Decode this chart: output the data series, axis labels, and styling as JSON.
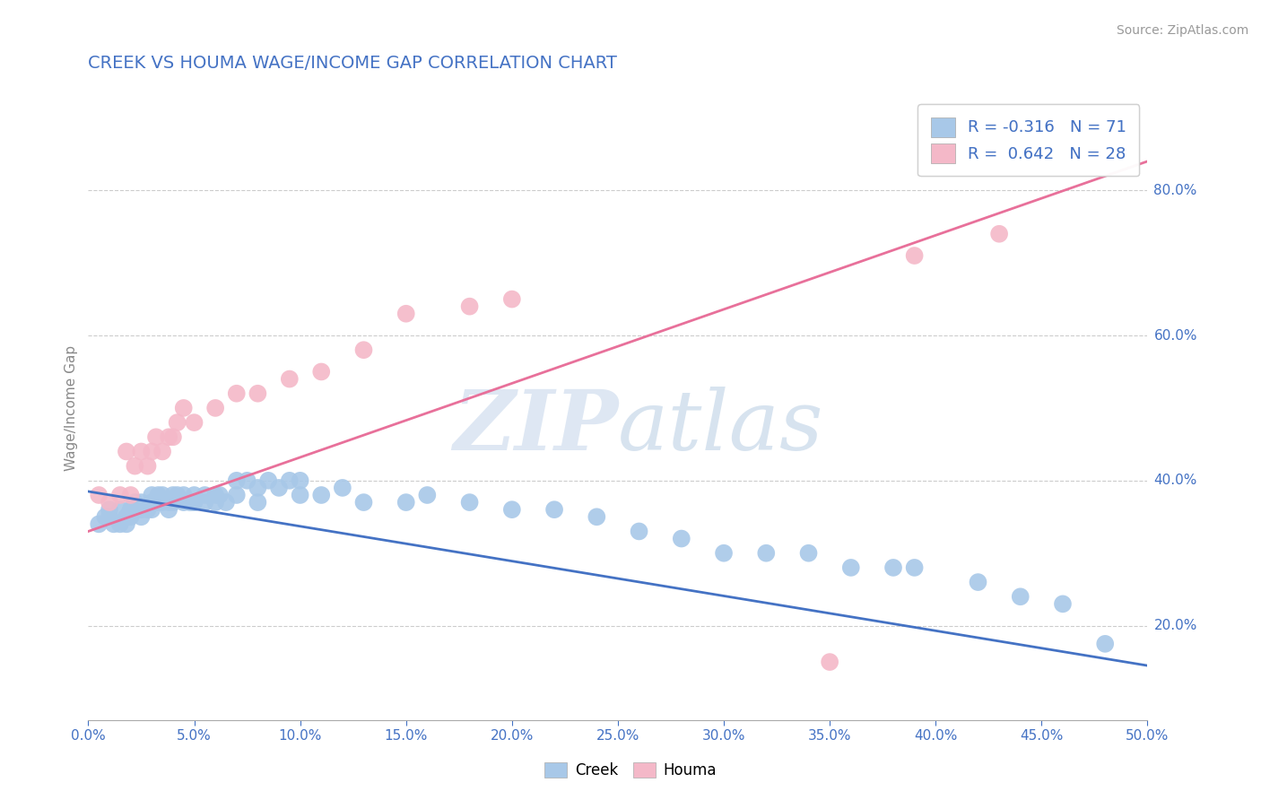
{
  "title": "CREEK VS HOUMA WAGE/INCOME GAP CORRELATION CHART",
  "source_text": "Source: ZipAtlas.com",
  "ylabel": "Wage/Income Gap",
  "xlim": [
    0.0,
    0.5
  ],
  "ylim": [
    0.07,
    0.93
  ],
  "xtick_labels": [
    "0.0%",
    "5.0%",
    "10.0%",
    "15.0%",
    "20.0%",
    "25.0%",
    "30.0%",
    "35.0%",
    "40.0%",
    "45.0%",
    "50.0%"
  ],
  "xtick_values": [
    0.0,
    0.05,
    0.1,
    0.15,
    0.2,
    0.25,
    0.3,
    0.35,
    0.4,
    0.45,
    0.5
  ],
  "ytick_labels": [
    "80.0%",
    "60.0%",
    "40.0%",
    "20.0%"
  ],
  "ytick_values": [
    0.8,
    0.6,
    0.4,
    0.2
  ],
  "creek_color": "#a8c8e8",
  "houma_color": "#f4b8c8",
  "creek_line_color": "#4472c4",
  "houma_line_color": "#e8709a",
  "creek_R": -0.316,
  "creek_N": 71,
  "houma_R": 0.642,
  "houma_N": 28,
  "background_color": "#ffffff",
  "grid_color": "#cccccc",
  "title_color": "#4472c4",
  "axis_label_color": "#888888",
  "tick_label_color": "#4472c4",
  "legend_label_color": "#4472c4",
  "watermark_zip_color": "#c8d8e8",
  "watermark_atlas_color": "#c8d8e8",
  "creek_scatter_x": [
    0.005,
    0.008,
    0.01,
    0.01,
    0.012,
    0.015,
    0.015,
    0.018,
    0.018,
    0.02,
    0.02,
    0.022,
    0.022,
    0.025,
    0.025,
    0.025,
    0.028,
    0.03,
    0.03,
    0.03,
    0.032,
    0.033,
    0.035,
    0.035,
    0.038,
    0.038,
    0.04,
    0.04,
    0.042,
    0.045,
    0.045,
    0.048,
    0.05,
    0.05,
    0.055,
    0.055,
    0.06,
    0.06,
    0.062,
    0.065,
    0.07,
    0.07,
    0.075,
    0.08,
    0.08,
    0.085,
    0.09,
    0.095,
    0.1,
    0.1,
    0.11,
    0.12,
    0.13,
    0.15,
    0.16,
    0.18,
    0.2,
    0.22,
    0.24,
    0.26,
    0.28,
    0.3,
    0.32,
    0.34,
    0.36,
    0.38,
    0.39,
    0.42,
    0.44,
    0.46,
    0.48
  ],
  "creek_scatter_y": [
    0.34,
    0.35,
    0.36,
    0.35,
    0.34,
    0.36,
    0.34,
    0.35,
    0.34,
    0.36,
    0.35,
    0.36,
    0.37,
    0.37,
    0.36,
    0.35,
    0.36,
    0.37,
    0.36,
    0.38,
    0.37,
    0.38,
    0.37,
    0.38,
    0.37,
    0.36,
    0.38,
    0.37,
    0.38,
    0.37,
    0.38,
    0.37,
    0.38,
    0.37,
    0.38,
    0.37,
    0.37,
    0.38,
    0.38,
    0.37,
    0.38,
    0.4,
    0.4,
    0.39,
    0.37,
    0.4,
    0.39,
    0.4,
    0.38,
    0.4,
    0.38,
    0.39,
    0.37,
    0.37,
    0.38,
    0.37,
    0.36,
    0.36,
    0.35,
    0.33,
    0.32,
    0.3,
    0.3,
    0.3,
    0.28,
    0.28,
    0.28,
    0.26,
    0.24,
    0.23,
    0.175
  ],
  "houma_scatter_x": [
    0.005,
    0.01,
    0.015,
    0.018,
    0.02,
    0.022,
    0.025,
    0.028,
    0.03,
    0.032,
    0.035,
    0.038,
    0.04,
    0.042,
    0.045,
    0.05,
    0.06,
    0.07,
    0.08,
    0.095,
    0.11,
    0.13,
    0.15,
    0.18,
    0.2,
    0.35,
    0.39,
    0.43
  ],
  "houma_scatter_y": [
    0.38,
    0.37,
    0.38,
    0.44,
    0.38,
    0.42,
    0.44,
    0.42,
    0.44,
    0.46,
    0.44,
    0.46,
    0.46,
    0.48,
    0.5,
    0.48,
    0.5,
    0.52,
    0.52,
    0.54,
    0.55,
    0.58,
    0.63,
    0.64,
    0.65,
    0.15,
    0.71,
    0.74
  ],
  "creek_line_x": [
    0.0,
    0.5
  ],
  "creek_line_y": [
    0.385,
    0.145
  ],
  "houma_line_x": [
    0.0,
    0.5
  ],
  "houma_line_y": [
    0.33,
    0.84
  ]
}
